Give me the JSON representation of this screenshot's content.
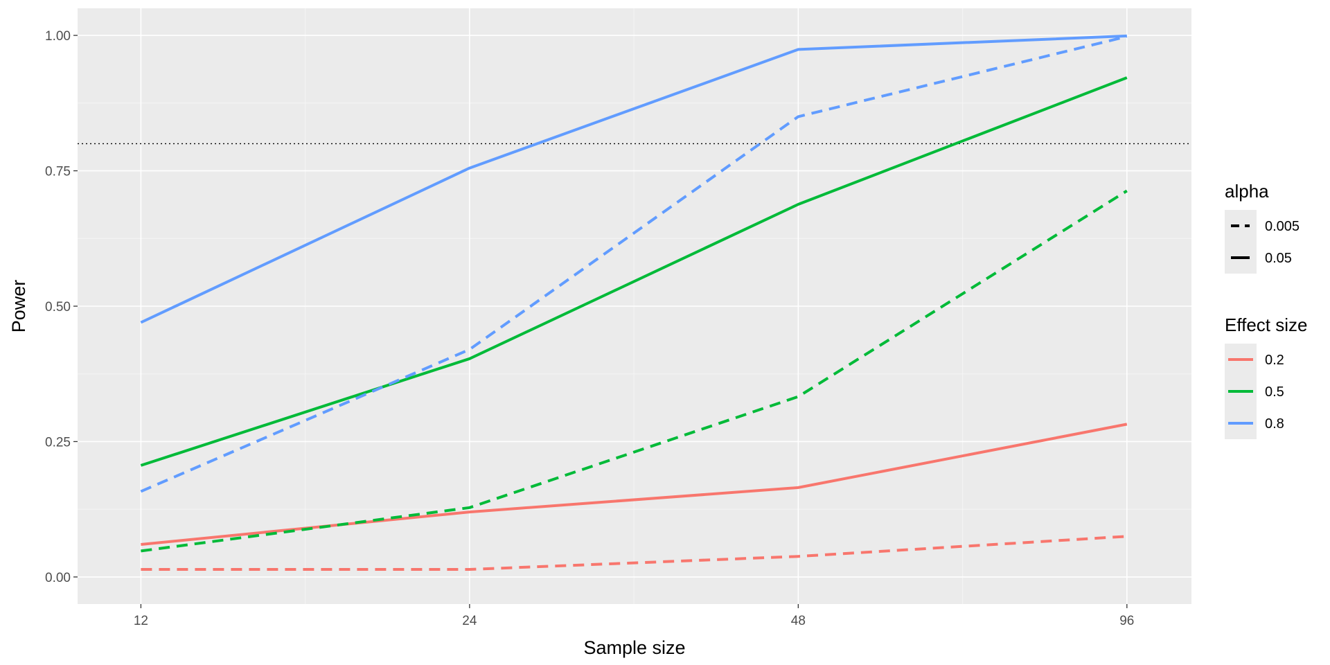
{
  "chart_data": {
    "type": "line",
    "xlabel": "Sample size",
    "ylabel": "Power",
    "x_scale": "log2",
    "x_ticks": [
      12,
      24,
      48,
      96
    ],
    "x_tick_labels": [
      "12",
      "24",
      "48",
      "96"
    ],
    "xlim": [
      10.5,
      110
    ],
    "y_ticks": [
      0,
      0.25,
      0.5,
      0.75,
      1
    ],
    "y_tick_labels": [
      "0.00",
      "0.25",
      "0.50",
      "0.75",
      "1.00"
    ],
    "ylim": [
      -0.05,
      1.05
    ],
    "reference_line": {
      "y": 0.8,
      "style": "dotted"
    },
    "grid": true,
    "panel_background": "#ebebeb",
    "legend_position": "right",
    "legends": [
      {
        "title": "alpha",
        "kind": "linetype",
        "items": [
          {
            "label": "0.005",
            "dash": "dashed"
          },
          {
            "label": "0.05",
            "dash": "solid"
          }
        ]
      },
      {
        "title": "Effect size",
        "kind": "colour",
        "items": [
          {
            "label": "0.2",
            "color": "#F8766D"
          },
          {
            "label": "0.5",
            "color": "#00BA38"
          },
          {
            "label": "0.8",
            "color": "#619CFF"
          }
        ]
      }
    ],
    "series": [
      {
        "effect_size": "0.2",
        "alpha": "0.005",
        "color": "#F8766D",
        "dash": "dashed",
        "x": [
          12,
          24,
          48,
          96
        ],
        "y": [
          0.014,
          0.014,
          0.038,
          0.075
        ]
      },
      {
        "effect_size": "0.2",
        "alpha": "0.05",
        "color": "#F8766D",
        "dash": "solid",
        "x": [
          12,
          24,
          48,
          96
        ],
        "y": [
          0.06,
          0.12,
          0.165,
          0.282
        ]
      },
      {
        "effect_size": "0.5",
        "alpha": "0.005",
        "color": "#00BA38",
        "dash": "dashed",
        "x": [
          12,
          24,
          48,
          96
        ],
        "y": [
          0.048,
          0.128,
          0.333,
          0.713
        ]
      },
      {
        "effect_size": "0.5",
        "alpha": "0.05",
        "color": "#00BA38",
        "dash": "solid",
        "x": [
          12,
          24,
          48,
          96
        ],
        "y": [
          0.206,
          0.403,
          0.688,
          0.922
        ]
      },
      {
        "effect_size": "0.8",
        "alpha": "0.005",
        "color": "#619CFF",
        "dash": "dashed",
        "x": [
          12,
          24,
          48,
          96
        ],
        "y": [
          0.158,
          0.42,
          0.85,
          0.998
        ]
      },
      {
        "effect_size": "0.8",
        "alpha": "0.05",
        "color": "#619CFF",
        "dash": "solid",
        "x": [
          12,
          24,
          48,
          96
        ],
        "y": [
          0.47,
          0.755,
          0.974,
          0.999
        ]
      }
    ]
  }
}
